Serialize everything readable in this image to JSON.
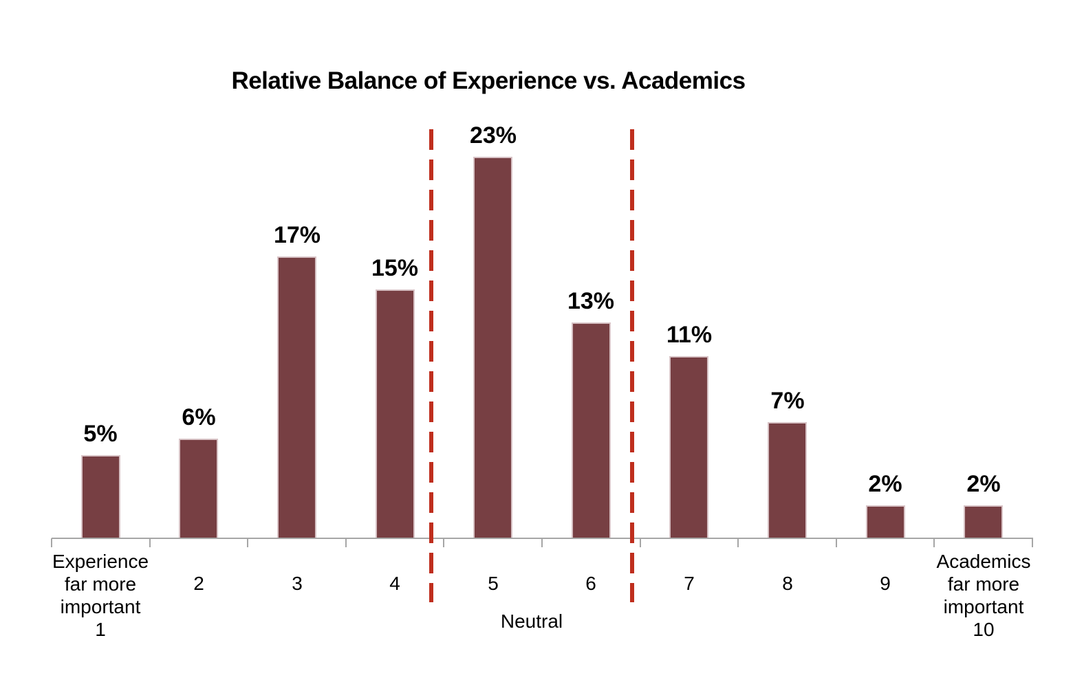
{
  "chart_data": {
    "type": "bar",
    "title": "Relative Balance of Experience vs. Academics",
    "categories": [
      "Experience\nfar more\nimportant\n1",
      "2",
      "3",
      "4",
      "5",
      "6",
      "7",
      "8",
      "9",
      "Academics\nfar more\nimportant\n10"
    ],
    "values": [
      5,
      6,
      17,
      15,
      23,
      13,
      11,
      7,
      2,
      2
    ],
    "value_labels": [
      "5%",
      "6%",
      "17%",
      "15%",
      "23%",
      "13%",
      "11%",
      "7%",
      "2%",
      "2%"
    ],
    "xlabel": "",
    "ylabel": "",
    "ylim": [
      0,
      25
    ],
    "grid": false,
    "legend": false,
    "y_axis_visible": false,
    "annotations": [
      {
        "text": "Neutral",
        "position": "below-axis-between-dividers"
      }
    ],
    "dividers": {
      "style": "dashed",
      "x_category_units": [
        3.87,
        5.92
      ],
      "color": "#bf2e1d"
    },
    "colors": {
      "bar_fill": "#773f43",
      "bar_border": "#d8c3c6",
      "divider": "#bf2e1d",
      "axis": "#a6a6a6",
      "text": "#000000"
    }
  }
}
